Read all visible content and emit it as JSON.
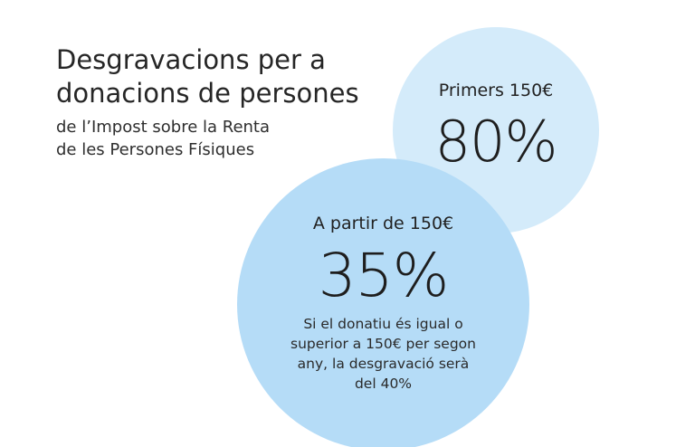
{
  "header": {
    "title_lines": [
      "Desgravacions per a",
      "donacions de persones"
    ],
    "subtitle_lines": [
      "de l’Impost sobre la Renta",
      "de les Persones Físiques"
    ]
  },
  "circles": {
    "top": {
      "label": "Primers 150€",
      "value": "80%",
      "color": "#d4ebfa"
    },
    "bottom": {
      "label": "A partir de 150€",
      "value": "35%",
      "note_lines": [
        "Si el donatiu és igual o",
        "superior a 150€ per segon",
        "any, la desgravació serà",
        "del 40%"
      ],
      "color": "#b5dcf7"
    }
  }
}
